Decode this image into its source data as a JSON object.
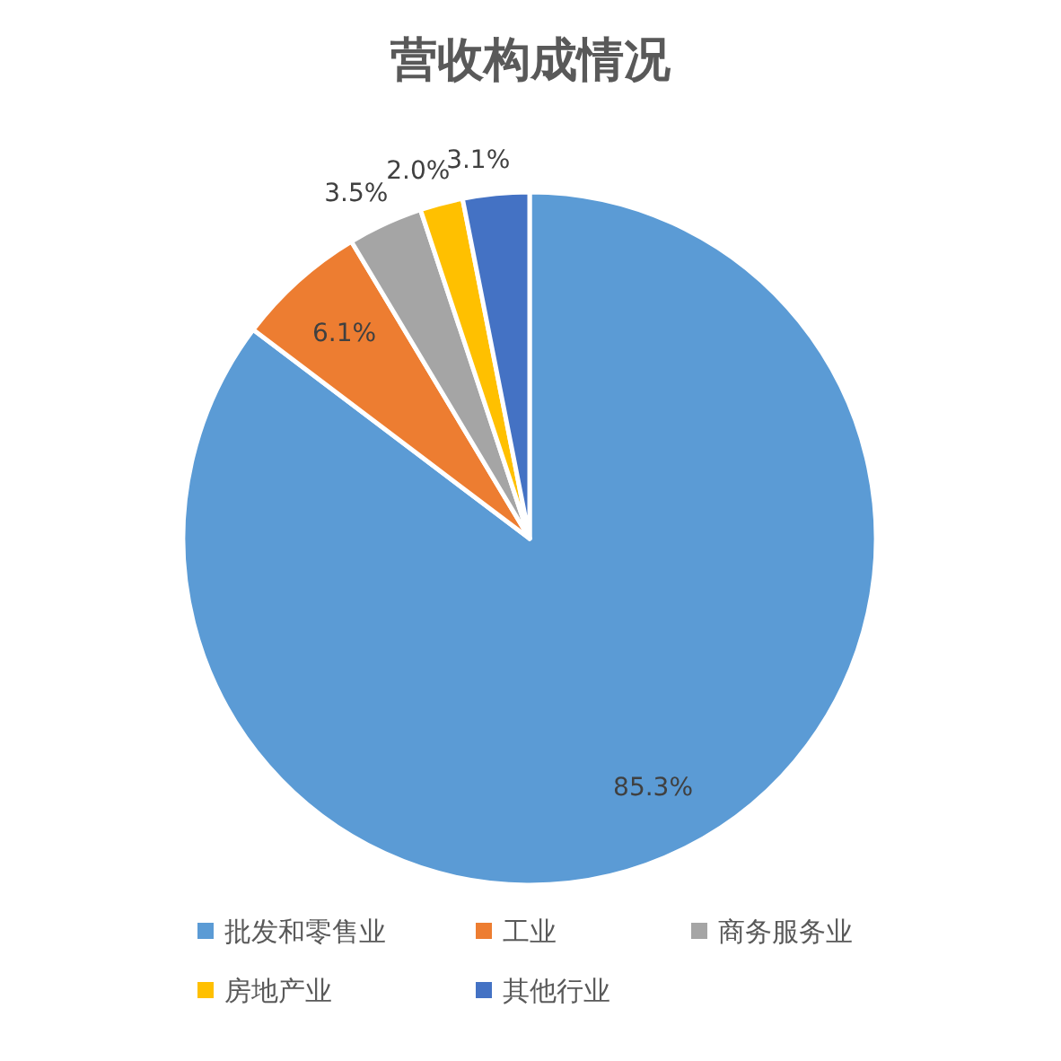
{
  "chart_data": {
    "type": "pie",
    "title": "营收构成情况",
    "categories": [
      "批发和零售业",
      "工业",
      "商务服务业",
      "房地产业",
      "其他行业"
    ],
    "values": [
      85.3,
      6.1,
      3.5,
      2.0,
      3.1
    ],
    "colors": [
      "#5b9bd5",
      "#ed7d31",
      "#a5a5a5",
      "#ffc000",
      "#4472c4"
    ],
    "value_labels": [
      "85.3%",
      "6.1%",
      "3.5%",
      "2.0%",
      "3.1%"
    ],
    "legend": "bottom"
  }
}
